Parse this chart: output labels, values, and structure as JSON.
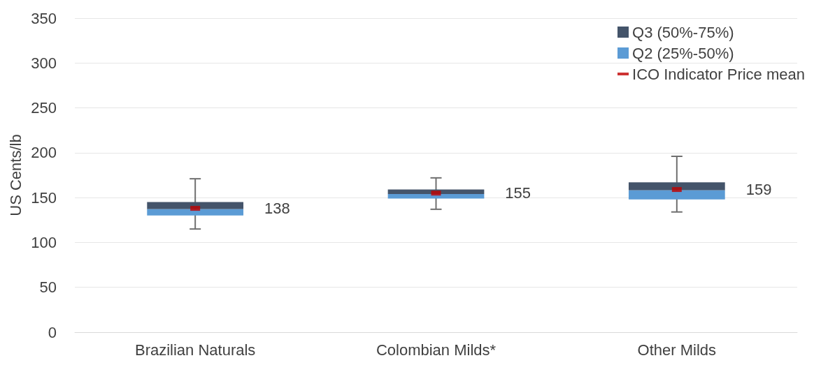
{
  "chart_data": {
    "type": "bar",
    "ylabel": "US Cents/lb",
    "categories": [
      "Brazilian Naturals",
      "Colombian Milds*",
      "Other Milds"
    ],
    "series": [
      {
        "name": "Q3 (50%-75%)",
        "color": "#44546a",
        "base": [
          137,
          154,
          158
        ],
        "values": [
          8,
          5,
          9
        ],
        "errors": [
          [
            115,
            171
          ],
          [
            137,
            172
          ],
          [
            134,
            196
          ]
        ]
      },
      {
        "name": "Q2 (25%-50%)",
        "color": "#5b9bd5",
        "base": [
          130,
          149,
          148
        ],
        "values": [
          7,
          5,
          10
        ]
      },
      {
        "name": "ICO Indicator Price mean",
        "color": "#c00000",
        "type": "scatter",
        "x": [
          "Brazilian Naturals",
          "Colombian Milds*",
          "Other Milds"
        ],
        "values": [
          138,
          155,
          159
        ]
      }
    ],
    "annotations": [
      "138",
      "155",
      "159"
    ],
    "ylim": [
      0,
      350
    ],
    "yticks": [
      0,
      50,
      100,
      150,
      200,
      250,
      300,
      350
    ],
    "grid": "y",
    "legend": "top right"
  }
}
